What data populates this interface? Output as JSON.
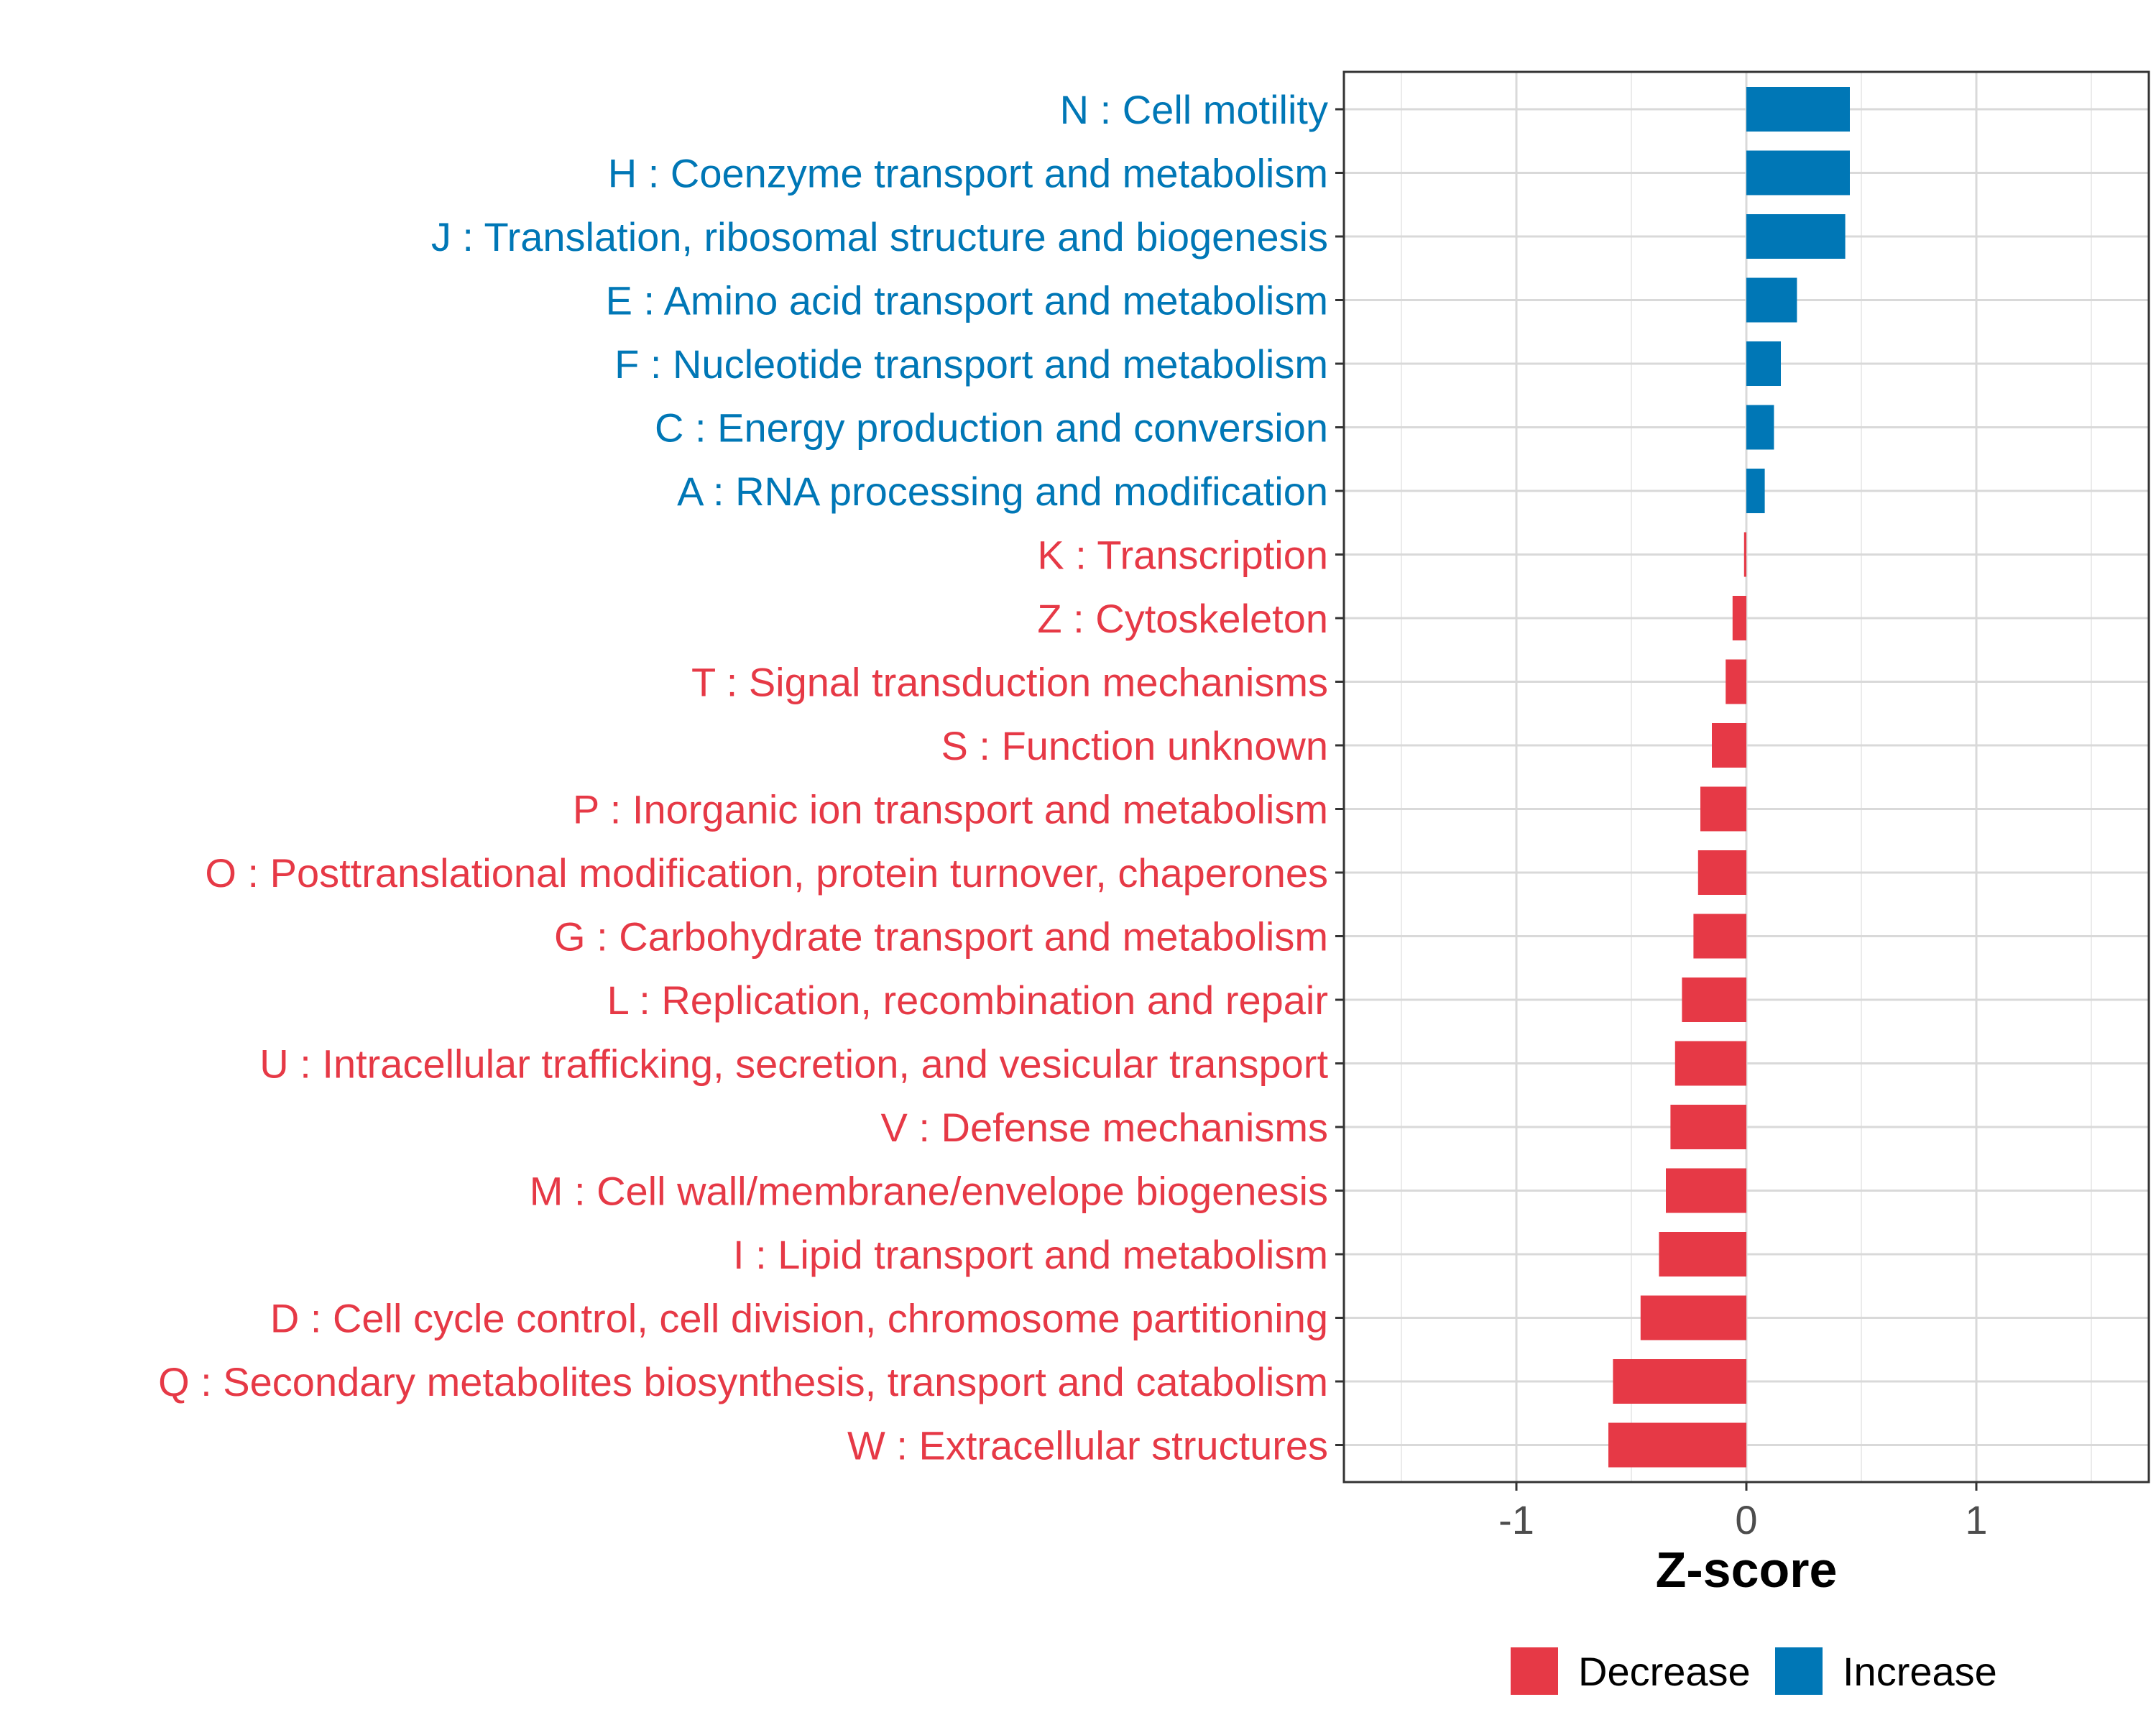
{
  "chart_data": {
    "type": "bar",
    "orientation": "horizontal",
    "categories": [
      "N : Cell motility",
      "H : Coenzyme transport and metabolism",
      "J : Translation, ribosomal structure and biogenesis",
      "E : Amino acid transport and metabolism",
      "F : Nucleotide transport and metabolism",
      "C : Energy production and conversion",
      "A : RNA processing and modification",
      "K : Transcription",
      "Z : Cytoskeleton",
      "T : Signal transduction mechanisms",
      "S : Function unknown",
      "P : Inorganic ion transport and metabolism",
      "O : Posttranslational modification, protein turnover, chaperones",
      "G : Carbohydrate transport and metabolism",
      "L : Replication, recombination and repair",
      "U : Intracellular trafficking, secretion, and vesicular transport",
      "V : Defense mechanisms",
      "M : Cell wall/membrane/envelope biogenesis",
      "I : Lipid transport and metabolism",
      "D : Cell cycle control, cell division, chromosome partitioning",
      "Q : Secondary metabolites biosynthesis, transport and catabolism",
      "W : Extracellular structures"
    ],
    "values": [
      0.45,
      0.45,
      0.43,
      0.22,
      0.15,
      0.12,
      0.08,
      -0.01,
      -0.06,
      -0.09,
      -0.15,
      -0.2,
      -0.21,
      -0.23,
      -0.28,
      -0.31,
      -0.33,
      -0.35,
      -0.38,
      -0.46,
      -0.58,
      -0.6
    ],
    "groups": [
      "Increase",
      "Increase",
      "Increase",
      "Increase",
      "Increase",
      "Increase",
      "Increase",
      "Decrease",
      "Decrease",
      "Decrease",
      "Decrease",
      "Decrease",
      "Decrease",
      "Decrease",
      "Decrease",
      "Decrease",
      "Decrease",
      "Decrease",
      "Decrease",
      "Decrease",
      "Decrease",
      "Decrease"
    ],
    "xlim": [
      -1.75,
      1.75
    ],
    "xticks": [
      -1,
      0,
      1
    ],
    "xtick_labels": [
      "-1",
      "0",
      "1"
    ],
    "xlabel": "Z-score",
    "ylabel": "",
    "grid": true,
    "legend": {
      "position": "bottom",
      "items": [
        {
          "label": "Decrease",
          "color": "#e63946"
        },
        {
          "label": "Increase",
          "color": "#0077b6"
        }
      ]
    },
    "colors": {
      "Decrease": "#e63946",
      "Increase": "#0077b6"
    }
  }
}
